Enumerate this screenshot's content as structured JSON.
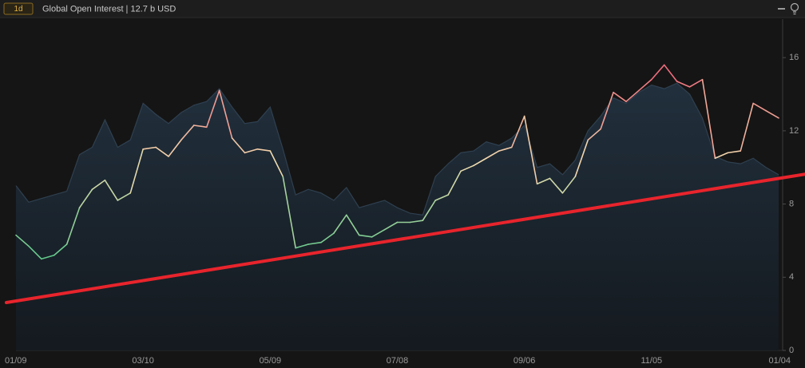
{
  "chart_data": {
    "type": "line",
    "title": "Global Open Interest | 12.7 b USD",
    "interval_button": "1d",
    "categories": [
      "01/09",
      null,
      null,
      null,
      null,
      null,
      null,
      null,
      null,
      null,
      "03/10",
      null,
      null,
      null,
      null,
      null,
      null,
      null,
      null,
      null,
      "05/09",
      null,
      null,
      null,
      null,
      null,
      null,
      null,
      null,
      null,
      "07/08",
      null,
      null,
      null,
      null,
      null,
      null,
      null,
      null,
      null,
      "09/06",
      null,
      null,
      null,
      null,
      null,
      null,
      null,
      null,
      null,
      "11/05",
      null,
      null,
      null,
      null,
      null,
      null,
      null,
      null,
      null,
      "01/04"
    ],
    "series": [
      {
        "kind": "area",
        "color": "#22313f",
        "values": [
          9.0,
          8.1,
          8.3,
          8.5,
          8.7,
          10.7,
          11.1,
          12.6,
          11.1,
          11.5,
          13.5,
          12.9,
          12.4,
          13.0,
          13.4,
          13.6,
          14.3,
          13.3,
          12.4,
          12.5,
          13.3,
          11.0,
          8.5,
          8.8,
          8.6,
          8.2,
          8.9,
          7.8,
          8.0,
          8.2,
          7.8,
          7.5,
          7.4,
          9.5,
          10.2,
          10.8,
          10.9,
          11.4,
          11.2,
          11.6,
          12.3,
          10.0,
          10.2,
          9.6,
          10.4,
          12.0,
          12.8,
          13.8,
          13.5,
          14.1,
          14.5,
          14.3,
          14.6,
          14.0,
          12.7,
          10.6,
          10.3,
          10.2,
          10.5,
          10.0,
          9.6
        ]
      },
      {
        "kind": "line",
        "colors": [
          "#5ec98a",
          "#f2dcb0",
          "#ef6478"
        ],
        "values": [
          6.3,
          5.7,
          5.0,
          5.2,
          5.8,
          7.8,
          8.8,
          9.3,
          8.2,
          8.6,
          11.0,
          11.1,
          10.6,
          11.5,
          12.3,
          12.2,
          14.2,
          11.6,
          10.8,
          11.0,
          10.9,
          9.5,
          5.6,
          5.8,
          5.9,
          6.4,
          7.4,
          6.3,
          6.2,
          6.6,
          7.0,
          7.0,
          7.1,
          8.2,
          8.5,
          9.8,
          10.1,
          10.5,
          10.9,
          11.1,
          12.8,
          9.1,
          9.4,
          8.6,
          9.5,
          11.5,
          12.1,
          14.1,
          13.6,
          14.2,
          14.8,
          15.6,
          14.7,
          14.4,
          14.8,
          10.5,
          10.8,
          10.9,
          13.5,
          13.1,
          12.7
        ]
      }
    ],
    "trendline": {
      "color": "#e8242c",
      "values": [
        2.7,
        9.4
      ]
    },
    "ylim": [
      0,
      18.1
    ],
    "yticks": [
      0,
      4,
      8,
      12,
      16
    ],
    "y_axis_side": "right"
  }
}
